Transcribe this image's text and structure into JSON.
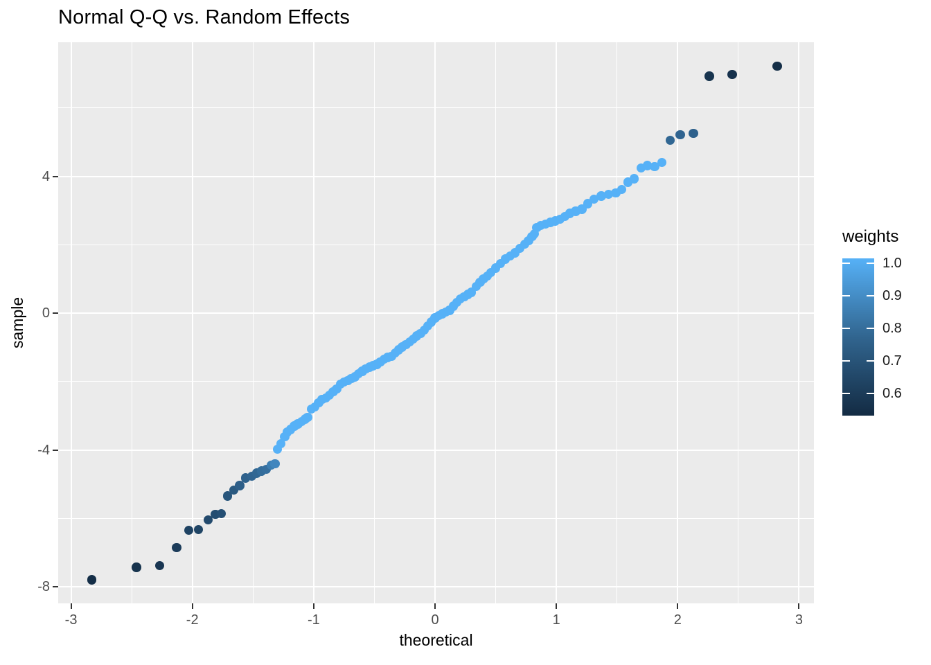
{
  "title": "Normal Q-Q vs. Random Effects",
  "axes": {
    "x": {
      "label": "theoretical",
      "domain": [
        -3.106,
        3.123
      ],
      "major_ticks": [
        -3,
        -2,
        -1,
        0,
        1,
        2,
        3
      ],
      "major_tick_labels": [
        "-3",
        "-2",
        "-1",
        "0",
        "1",
        "2",
        "3"
      ],
      "minor_ticks": [
        -2.5,
        -1.5,
        -0.5,
        0.5,
        1.5,
        2.5
      ]
    },
    "y": {
      "label": "sample",
      "domain": [
        -8.486,
        7.919
      ],
      "major_ticks": [
        4,
        0,
        -4,
        -8
      ],
      "major_tick_labels": [
        "4",
        "0",
        "-4",
        "-8"
      ],
      "minor_ticks": [
        6,
        2,
        -2,
        -6
      ]
    }
  },
  "legend": {
    "title": "weights",
    "tick_values": [
      1.0,
      0.9,
      0.8,
      0.7,
      0.6
    ],
    "tick_labels": [
      "1.0",
      "0.9",
      "0.8",
      "0.7",
      "0.6"
    ],
    "bar_domain": [
      0.531,
      1.014
    ],
    "low_color": "#132B43",
    "mid_color": "#31658F",
    "high_color": "#56B1F7"
  },
  "style": {
    "panel_bg": "#EBEBEB",
    "grid_color": "#FFFFFF",
    "tick_color": "#333333",
    "tick_label_color": "#4D4D4D",
    "point_diameter": 13.4,
    "weight_color_domain": [
      0.53,
      1.0
    ]
  },
  "chart_data": {
    "type": "scatter",
    "title": "Normal Q-Q vs. Random Effects",
    "xlabel": "theoretical",
    "ylabel": "sample",
    "xlim": [
      -3.106,
      3.123
    ],
    "ylim": [
      -8.486,
      7.919
    ],
    "grid": true,
    "legend_position": "right",
    "color_scale": {
      "name": "weights",
      "low": "#132B43",
      "high": "#56B1F7",
      "range": [
        0.53,
        1.0
      ]
    },
    "series": [
      {
        "name": "weights",
        "point_format": [
          "theoretical",
          "sample",
          "weight"
        ],
        "points": [
          [
            -2.83,
            -7.8,
            0.54
          ],
          [
            -2.46,
            -7.43,
            0.56
          ],
          [
            -2.27,
            -7.38,
            0.57
          ],
          [
            -2.13,
            -6.85,
            0.59
          ],
          [
            -2.03,
            -6.35,
            0.61
          ],
          [
            -1.95,
            -6.33,
            0.62
          ],
          [
            -1.87,
            -6.05,
            0.64
          ],
          [
            -1.81,
            -5.88,
            0.65
          ],
          [
            -1.76,
            -5.86,
            0.66
          ],
          [
            -1.71,
            -5.35,
            0.68
          ],
          [
            -1.66,
            -5.18,
            0.69
          ],
          [
            -1.61,
            -5.04,
            0.71
          ],
          [
            -1.56,
            -4.82,
            0.72
          ],
          [
            -1.51,
            -4.77,
            0.73
          ],
          [
            -1.47,
            -4.68,
            0.74
          ],
          [
            -1.43,
            -4.62,
            0.76
          ],
          [
            -1.39,
            -4.57,
            0.77
          ],
          [
            -1.35,
            -4.44,
            0.82
          ],
          [
            -1.32,
            -4.4,
            0.85
          ],
          [
            -1.3,
            -3.98,
            1.0
          ],
          [
            -1.27,
            -3.82,
            1.0
          ],
          [
            -1.24,
            -3.62,
            1.0
          ],
          [
            -1.22,
            -3.48,
            1.0
          ],
          [
            -1.19,
            -3.4,
            1.0
          ],
          [
            -1.16,
            -3.3,
            1.0
          ],
          [
            -1.13,
            -3.24,
            1.0
          ],
          [
            -1.1,
            -3.17,
            1.0
          ],
          [
            -1.07,
            -3.1,
            1.0
          ],
          [
            -1.05,
            -3.05,
            1.0
          ],
          [
            -1.02,
            -2.8,
            1.0
          ],
          [
            -0.99,
            -2.74,
            1.0
          ],
          [
            -0.96,
            -2.62,
            1.0
          ],
          [
            -0.93,
            -2.52,
            1.0
          ],
          [
            -0.9,
            -2.48,
            1.0
          ],
          [
            -0.87,
            -2.4,
            1.0
          ],
          [
            -0.84,
            -2.3,
            1.0
          ],
          [
            -0.81,
            -2.22,
            1.0
          ],
          [
            -0.78,
            -2.08,
            1.0
          ],
          [
            -0.75,
            -2.02,
            1.0
          ],
          [
            -0.72,
            -1.97,
            1.0
          ],
          [
            -0.69,
            -1.92,
            1.0
          ],
          [
            -0.66,
            -1.86,
            1.0
          ],
          [
            -0.63,
            -1.77,
            1.0
          ],
          [
            -0.6,
            -1.7,
            1.0
          ],
          [
            -0.57,
            -1.63,
            1.0
          ],
          [
            -0.54,
            -1.58,
            1.0
          ],
          [
            -0.51,
            -1.54,
            1.0
          ],
          [
            -0.48,
            -1.5,
            1.0
          ],
          [
            -0.45,
            -1.43,
            1.0
          ],
          [
            -0.42,
            -1.35,
            1.0
          ],
          [
            -0.39,
            -1.3,
            1.0
          ],
          [
            -0.36,
            -1.26,
            1.0
          ],
          [
            -0.33,
            -1.17,
            1.0
          ],
          [
            -0.3,
            -1.07,
            1.0
          ],
          [
            -0.27,
            -0.99,
            1.0
          ],
          [
            -0.24,
            -0.92,
            1.0
          ],
          [
            -0.21,
            -0.84,
            1.0
          ],
          [
            -0.18,
            -0.76,
            1.0
          ],
          [
            -0.15,
            -0.67,
            1.0
          ],
          [
            -0.12,
            -0.6,
            1.0
          ],
          [
            -0.09,
            -0.5,
            1.0
          ],
          [
            -0.06,
            -0.38,
            1.0
          ],
          [
            -0.03,
            -0.26,
            1.0
          ],
          [
            0.0,
            -0.14,
            1.0
          ],
          [
            0.03,
            -0.07,
            1.0
          ],
          [
            0.06,
            -0.02,
            1.0
          ],
          [
            0.09,
            0.03,
            1.0
          ],
          [
            0.12,
            0.08,
            1.0
          ],
          [
            0.15,
            0.2,
            1.0
          ],
          [
            0.18,
            0.32,
            1.0
          ],
          [
            0.21,
            0.41,
            1.0
          ],
          [
            0.24,
            0.48,
            1.0
          ],
          [
            0.27,
            0.55,
            1.0
          ],
          [
            0.3,
            0.61,
            1.0
          ],
          [
            0.34,
            0.78,
            1.0
          ],
          [
            0.37,
            0.9,
            1.0
          ],
          [
            0.4,
            1.0,
            1.0
          ],
          [
            0.43,
            1.08,
            1.0
          ],
          [
            0.46,
            1.19,
            1.0
          ],
          [
            0.5,
            1.32,
            1.0
          ],
          [
            0.54,
            1.45,
            1.0
          ],
          [
            0.58,
            1.58,
            1.0
          ],
          [
            0.62,
            1.67,
            1.0
          ],
          [
            0.66,
            1.76,
            1.0
          ],
          [
            0.7,
            1.89,
            1.0
          ],
          [
            0.74,
            2.02,
            1.0
          ],
          [
            0.77,
            2.12,
            1.0
          ],
          [
            0.8,
            2.24,
            1.0
          ],
          [
            0.82,
            2.32,
            1.0
          ],
          [
            0.84,
            2.5,
            1.0
          ],
          [
            0.87,
            2.56,
            1.0
          ],
          [
            0.91,
            2.6,
            1.0
          ],
          [
            0.95,
            2.65,
            1.0
          ],
          [
            0.99,
            2.69,
            1.0
          ],
          [
            1.03,
            2.74,
            1.0
          ],
          [
            1.07,
            2.83,
            1.0
          ],
          [
            1.11,
            2.92,
            1.0
          ],
          [
            1.16,
            2.98,
            1.0
          ],
          [
            1.21,
            3.04,
            1.0
          ],
          [
            1.26,
            3.2,
            1.0
          ],
          [
            1.31,
            3.33,
            1.0
          ],
          [
            1.37,
            3.42,
            1.0
          ],
          [
            1.43,
            3.47,
            1.0
          ],
          [
            1.49,
            3.52,
            1.0
          ],
          [
            1.54,
            3.62,
            1.0
          ],
          [
            1.59,
            3.83,
            1.0
          ],
          [
            1.64,
            3.93,
            1.0
          ],
          [
            1.7,
            4.24,
            1.0
          ],
          [
            1.75,
            4.31,
            1.0
          ],
          [
            1.81,
            4.28,
            1.0
          ],
          [
            1.87,
            4.41,
            1.0
          ],
          [
            1.94,
            5.05,
            0.74
          ],
          [
            2.02,
            5.22,
            0.73
          ],
          [
            2.13,
            5.26,
            0.72
          ],
          [
            2.26,
            6.93,
            0.56
          ],
          [
            2.45,
            6.98,
            0.555
          ],
          [
            2.82,
            7.22,
            0.54
          ]
        ]
      }
    ]
  }
}
